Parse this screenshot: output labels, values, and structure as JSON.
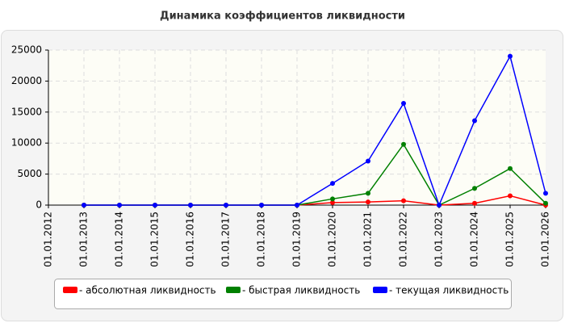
{
  "chart_data": {
    "type": "line",
    "title": "Динамика коэффициентов ликвидности",
    "categories": [
      "01.01.2012",
      "01.01.2013",
      "01.01.2014",
      "01.01.2015",
      "01.01.2016",
      "01.01.2017",
      "01.01.2018",
      "01.01.2019",
      "01.01.2020",
      "01.01.2021",
      "01.01.2022",
      "01.01.2023",
      "01.01.2024",
      "01.01.2025",
      "01.01.2026"
    ],
    "series": [
      {
        "name": "- абсолютная ликвидность",
        "color": "#ff0000",
        "values": [
          null,
          0,
          0,
          0,
          0,
          0,
          0,
          0,
          400,
          500,
          700,
          0,
          300,
          1500,
          0
        ]
      },
      {
        "name": "- быстрая ликвидность",
        "color": "#008000",
        "values": [
          null,
          0,
          0,
          0,
          0,
          0,
          0,
          0,
          1000,
          1900,
          9800,
          0,
          2700,
          5900,
          300
        ]
      },
      {
        "name": "- текущая ликвидность",
        "color": "#0000ff",
        "values": [
          null,
          0,
          0,
          0,
          0,
          0,
          0,
          0,
          3500,
          7100,
          16400,
          0,
          13600,
          24000,
          1900
        ]
      }
    ],
    "ylim": [
      0,
      25000
    ],
    "yticks": [
      0,
      5000,
      10000,
      15000,
      20000,
      25000
    ],
    "grid": true
  }
}
